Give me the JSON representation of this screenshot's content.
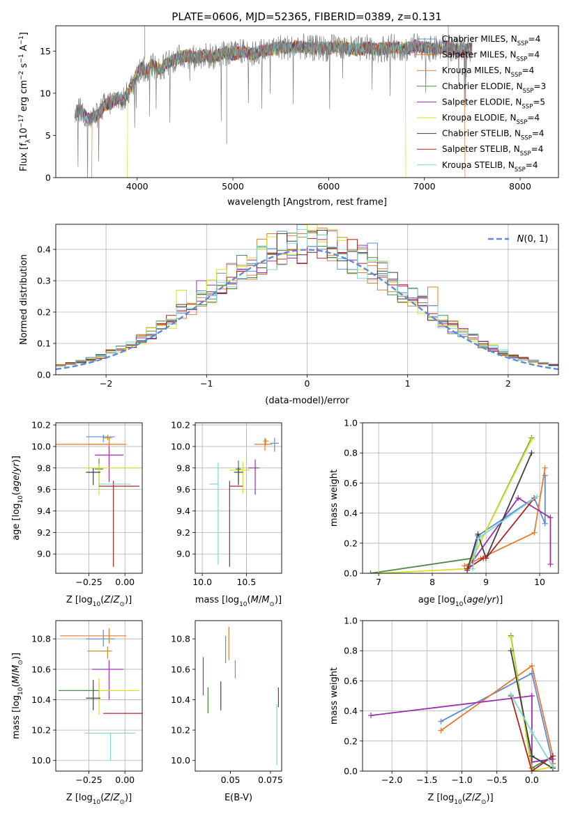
{
  "figure_title": "PLATE=0606, MJD=52365, FIBERID=0389, z=0.131",
  "colors": {
    "Chabrier MILES": "#5b8bd6",
    "Salpeter MILES": "#e67a2e",
    "Kroupa MILES": "#c98a2e",
    "Chabrier ELODIE": "#4c8a4c",
    "Salpeter ELODIE": "#9b2fae",
    "Kroupa ELODIE": "#d9e021",
    "Chabrier STELIB": "#3f3f3f",
    "Salpeter STELIB": "#b22222",
    "Kroupa STELIB": "#7fd6d6",
    "gauss": "#5b8bd6"
  },
  "chart_data": [
    {
      "id": "spectrum",
      "type": "line",
      "title": "PLATE=0606, MJD=52365, FIBERID=0389, z=0.131",
      "xlabel": "wavelength [Angstrom, rest frame]",
      "ylabel": "Flux [f_λ 10^-17 erg cm^-2 s^-1 A^-1]",
      "xlim": [
        3150,
        8400
      ],
      "ylim": [
        0,
        18
      ],
      "xticks": [
        4000,
        5000,
        6000,
        7000,
        8000
      ],
      "yticks": [
        0,
        5,
        10,
        15
      ],
      "grid": false,
      "legend": "top-right",
      "data_curve": {
        "x": [
          3350,
          3400,
          3450,
          3500,
          3550,
          3600,
          3650,
          3700,
          3750,
          3800,
          3850,
          3900,
          3950,
          4000,
          4050,
          4100,
          4150,
          4200,
          4250,
          4300,
          4350,
          4400,
          4450,
          4500,
          4600,
          4700,
          4800,
          4900,
          5000,
          5100,
          5200,
          5300,
          5400,
          5500,
          5600,
          5700,
          5800,
          5900,
          6000,
          6100,
          6200,
          6300,
          6400,
          6500,
          6600,
          6700,
          6800,
          6900,
          7000,
          7100,
          7200,
          7300,
          7400,
          7500
        ],
        "y": [
          7.8,
          8.0,
          7.5,
          6.8,
          7.2,
          7.5,
          8.5,
          8.8,
          9.0,
          9.5,
          9.0,
          10.0,
          11.0,
          12.5,
          13.0,
          12.5,
          13.5,
          13.0,
          12.8,
          13.5,
          13.8,
          14.0,
          14.3,
          14.5,
          14.2,
          14.5,
          14.3,
          14.8,
          14.6,
          15.0,
          14.6,
          15.0,
          15.2,
          15.5,
          15.4,
          15.6,
          15.3,
          15.4,
          15.3,
          15.6,
          15.3,
          15.2,
          15.4,
          15.2,
          15.3,
          15.5,
          15.2,
          15.6,
          15.4,
          15.2,
          15.5,
          15.2,
          15.0,
          15.3
        ]
      },
      "model_dropouts": [
        {
          "series": "Salpeter MILES",
          "x_start": 3530
        },
        {
          "series": "Kroupa ELODIE",
          "x_start": 3900
        },
        {
          "series": "Kroupa ELODIE",
          "x_end": 6800
        },
        {
          "series": "Salpeter MILES",
          "x_end": 7420
        }
      ],
      "series_labels": [
        "Chabrier MILES, N_SSP=4",
        "Salpeter MILES, N_SSP=4",
        "Kroupa MILES, N_SSP=4",
        "Chabrier ELODIE, N_SSP=3",
        "Salpeter ELODIE, N_SSP=5",
        "Kroupa ELODIE, N_SSP=4",
        "Chabrier STELIB, N_SSP=4",
        "Salpeter STELIB, N_SSP=4",
        "Kroupa STELIB, N_SSP=4"
      ],
      "series_keys": [
        "Chabrier MILES",
        "Salpeter MILES",
        "Kroupa MILES",
        "Chabrier ELODIE",
        "Salpeter ELODIE",
        "Kroupa ELODIE",
        "Chabrier STELIB",
        "Salpeter STELIB",
        "Kroupa STELIB"
      ]
    },
    {
      "id": "residuals",
      "type": "histogram",
      "xlabel": "(data-model)/error",
      "ylabel": "Normed distribution",
      "xlim": [
        -2.5,
        2.5
      ],
      "ylim": [
        0,
        0.48
      ],
      "xticks": [
        -2,
        -1,
        0,
        1,
        2
      ],
      "yticks": [
        0.0,
        0.1,
        0.2,
        0.3,
        0.4
      ],
      "grid": true,
      "legend": "top-right",
      "legend_label": "N(0,1)",
      "bin_width": 0.1,
      "bin_start": -2.5,
      "base_curve": "gaussian",
      "spikes": [
        {
          "x": -1.25,
          "value": 0.27,
          "series": "Kroupa ELODIE"
        },
        {
          "x": -1.0,
          "value": 0.3,
          "series": "Salpeter ELODIE"
        },
        {
          "x": -0.35,
          "value": 0.44,
          "series": "Kroupa ELODIE"
        },
        {
          "x": 0.0,
          "value": 0.45,
          "series": "Salpeter MILES"
        },
        {
          "x": 0.65,
          "value": 0.42,
          "series": "Chabrier MILES"
        },
        {
          "x": 1.25,
          "value": 0.28,
          "series": "Salpeter MILES"
        }
      ]
    },
    {
      "id": "age_vs_Z",
      "type": "scatter",
      "xlabel": "Z [log10(Z/Z⊙)]",
      "ylabel": "age [log10(age/yr)]",
      "xlim": [
        -0.48,
        0.12
      ],
      "ylim": [
        8.82,
        10.22
      ],
      "xticks": [
        -0.25,
        0.0
      ],
      "yticks": [
        9.0,
        9.2,
        9.4,
        9.6,
        9.8,
        10.0,
        10.2
      ],
      "grid": true,
      "points": [
        {
          "series": "Chabrier MILES",
          "x": -0.15,
          "y": 10.09,
          "xerr": [
            0.12,
            0.08
          ],
          "yerr": [
            0.05,
            0.02
          ]
        },
        {
          "series": "Salpeter MILES",
          "x": -0.11,
          "y": 10.02,
          "xerr": [
            0.15,
            0.12
          ],
          "yerr": [
            0.03,
            0.06
          ]
        },
        {
          "series": "Kroupa MILES",
          "x": -0.12,
          "y": 10.08,
          "xerr": [
            0.03,
            0.03
          ],
          "yerr": [
            0.02,
            0.03
          ]
        },
        {
          "series": "Chabrier ELODIE",
          "x": -0.18,
          "y": 9.79,
          "xerr": [
            0.03,
            0.03
          ],
          "yerr": [
            0.15,
            0.1
          ]
        },
        {
          "series": "Salpeter ELODIE",
          "x": -0.11,
          "y": 9.92,
          "xerr": [
            0.1,
            0.1
          ],
          "yerr": [
            0.25,
            0.08
          ]
        },
        {
          "series": "Kroupa ELODIE",
          "x": -0.18,
          "y": 9.8,
          "xerr": [
            0.1,
            0.28
          ],
          "yerr": [
            0.25,
            0.04
          ]
        },
        {
          "series": "Chabrier STELIB",
          "x": -0.22,
          "y": 9.76,
          "xerr": [
            0.05,
            0.05
          ],
          "yerr": [
            0.12,
            0.04
          ]
        },
        {
          "series": "Salpeter STELIB",
          "x": -0.08,
          "y": 9.63,
          "xerr": [
            0.1,
            0.18
          ],
          "yerr": [
            0.75,
            0.05
          ]
        },
        {
          "series": "Kroupa STELIB",
          "x": -0.08,
          "y": 9.65,
          "xerr": [
            0.1,
            0.12
          ],
          "yerr": [
            0.0,
            0.0
          ]
        },
        {
          "series": "Salpeter MILES",
          "x": -0.38,
          "y": 10.02,
          "xerr": [
            0.1,
            0.28
          ],
          "yerr": [
            0.0,
            0.0
          ]
        }
      ]
    },
    {
      "id": "age_vs_mass",
      "type": "scatter",
      "xlabel": "mass [log10(M/M⊙)]",
      "ylabel": "",
      "xlim": [
        9.92,
        10.9
      ],
      "ylim": [
        8.82,
        10.22
      ],
      "xticks": [
        10.0,
        10.5
      ],
      "yticks": [
        9.0,
        9.2,
        9.4,
        9.6,
        9.8,
        10.0,
        10.2
      ],
      "grid": true,
      "points": [
        {
          "series": "Chabrier MILES",
          "x": 10.82,
          "y": 10.03,
          "xerr": [
            0.05,
            0.05
          ],
          "yerr": [
            0.08,
            0.05
          ]
        },
        {
          "series": "Salpeter MILES",
          "x": 10.71,
          "y": 10.02,
          "xerr": [
            0.12,
            0.08
          ],
          "yerr": [
            0.06,
            0.06
          ]
        },
        {
          "series": "Kroupa MILES",
          "x": 10.72,
          "y": 10.05,
          "xerr": [
            0.03,
            0.03
          ],
          "yerr": [
            0.04,
            0.02
          ]
        },
        {
          "series": "Chabrier ELODIE",
          "x": 10.41,
          "y": 9.79,
          "xerr": [
            0.03,
            0.03
          ],
          "yerr": [
            0.12,
            0.08
          ]
        },
        {
          "series": "Salpeter ELODIE",
          "x": 10.6,
          "y": 9.8,
          "xerr": [
            0.08,
            0.05
          ],
          "yerr": [
            0.25,
            0.08
          ]
        },
        {
          "series": "Kroupa ELODIE",
          "x": 10.46,
          "y": 9.78,
          "xerr": [
            0.15,
            0.08
          ],
          "yerr": [
            0.22,
            0.08
          ]
        },
        {
          "series": "Chabrier STELIB",
          "x": 10.41,
          "y": 9.76,
          "xerr": [
            0.05,
            0.05
          ],
          "yerr": [
            0.12,
            0.05
          ]
        },
        {
          "series": "Salpeter STELIB",
          "x": 10.31,
          "y": 9.63,
          "xerr": [
            0.0,
            0.15
          ],
          "yerr": [
            0.75,
            0.05
          ]
        },
        {
          "series": "Kroupa STELIB",
          "x": 10.18,
          "y": 9.65,
          "xerr": [
            0.1,
            0.0
          ],
          "yerr": [
            0.75,
            0.2
          ]
        }
      ]
    },
    {
      "id": "weight_vs_age",
      "type": "line",
      "xlabel": "age [log10(age/yr)]",
      "ylabel": "mass weight",
      "xlim": [
        6.7,
        10.35
      ],
      "ylim": [
        0,
        1.0
      ],
      "xticks": [
        7,
        8,
        9,
        10
      ],
      "yticks": [
        0.0,
        0.2,
        0.4,
        0.6,
        0.8,
        1.0
      ],
      "grid": true,
      "series": [
        {
          "key": "Chabrier MILES",
          "x": [
            8.7,
            8.85,
            9.9,
            10.1,
            10.1
          ],
          "y": [
            0.05,
            0.25,
            0.5,
            0.33,
            0.65
          ]
        },
        {
          "key": "Salpeter MILES",
          "x": [
            8.6,
            8.9,
            9.9,
            10.1
          ],
          "y": [
            0.05,
            0.1,
            0.27,
            0.7
          ]
        },
        {
          "key": "Chabrier ELODIE",
          "x": [
            6.85,
            8.75,
            9.85
          ],
          "y": [
            0.0,
            0.1,
            0.9
          ]
        },
        {
          "key": "Salpeter ELODIE",
          "x": [
            8.75,
            9.6,
            10.2,
            10.2
          ],
          "y": [
            0.08,
            0.5,
            0.37,
            0.06
          ]
        },
        {
          "key": "Kroupa ELODIE",
          "x": [
            7.0,
            8.65,
            9.85
          ],
          "y": [
            0.0,
            0.03,
            0.89
          ]
        },
        {
          "key": "Chabrier STELIB",
          "x": [
            8.65,
            8.85,
            9.0,
            9.85
          ],
          "y": [
            0.02,
            0.26,
            0.1,
            0.8
          ]
        },
        {
          "key": "Salpeter STELIB",
          "x": [
            8.65,
            8.95,
            9.0,
            9.9
          ],
          "y": [
            0.03,
            0.1,
            0.1,
            0.5
          ]
        },
        {
          "key": "Kroupa STELIB",
          "x": [
            8.75,
            8.85,
            9.95
          ],
          "y": [
            0.03,
            0.23,
            0.51
          ]
        }
      ]
    },
    {
      "id": "mass_vs_Z",
      "type": "scatter",
      "xlabel": "Z [log10(Z/Z⊙)]",
      "ylabel": "mass [log10(M/M⊙)]",
      "xlim": [
        -0.48,
        0.12
      ],
      "ylim": [
        9.93,
        10.92
      ],
      "xticks": [
        -0.25,
        0.0
      ],
      "yticks": [
        10.0,
        10.2,
        10.4,
        10.6,
        10.8
      ],
      "grid": true,
      "points": [
        {
          "series": "Chabrier MILES",
          "x": -0.15,
          "y": 10.8,
          "xerr": [
            0.12,
            0.08
          ],
          "yerr": [
            0.05,
            0.06
          ]
        },
        {
          "series": "Salpeter MILES",
          "x": -0.11,
          "y": 10.82,
          "xerr": [
            0.34,
            0.12
          ],
          "yerr": [
            0.05,
            0.05
          ]
        },
        {
          "series": "Kroupa MILES",
          "x": -0.12,
          "y": 10.72,
          "xerr": [
            0.14,
            0.03
          ],
          "yerr": [
            0.05,
            0.03
          ]
        },
        {
          "series": "Chabrier ELODIE",
          "x": -0.18,
          "y": 10.46,
          "xerr": [
            0.28,
            0.0
          ],
          "yerr": [
            0.05,
            0.05
          ]
        },
        {
          "series": "Salpeter ELODIE",
          "x": -0.11,
          "y": 10.6,
          "xerr": [
            0.12,
            0.1
          ],
          "yerr": [
            0.2,
            0.06
          ]
        },
        {
          "series": "Kroupa ELODIE",
          "x": -0.18,
          "y": 10.46,
          "xerr": [
            0.0,
            0.28
          ],
          "yerr": [
            0.16,
            0.08
          ]
        },
        {
          "series": "Chabrier STELIB",
          "x": -0.22,
          "y": 10.41,
          "xerr": [
            0.05,
            0.05
          ],
          "yerr": [
            0.08,
            0.12
          ]
        },
        {
          "series": "Salpeter STELIB",
          "x": -0.15,
          "y": 10.31,
          "xerr": [
            0.0,
            0.27
          ],
          "yerr": [
            0.0,
            0.0
          ]
        },
        {
          "series": "Kroupa STELIB",
          "x": -0.1,
          "y": 10.18,
          "xerr": [
            0.18,
            0.17
          ],
          "yerr": [
            0.18,
            0.0
          ]
        }
      ]
    },
    {
      "id": "mass_vs_ebv",
      "type": "scatter",
      "xlabel": "E(B-V)",
      "ylabel": "",
      "xlim": [
        0.028,
        0.082
      ],
      "ylim": [
        9.93,
        10.92
      ],
      "xticks": [
        0.05,
        0.075
      ],
      "yticks": [
        10.0,
        10.2,
        10.4,
        10.6,
        10.8
      ],
      "grid": false,
      "points": [
        {
          "series": "Chabrier MILES",
          "x": 0.047,
          "y": 10.73,
          "yerr": [
            0.09,
            0.09
          ]
        },
        {
          "series": "Salpeter MILES",
          "x": 0.049,
          "y": 10.78,
          "yerr": [
            0.12,
            0.1
          ]
        },
        {
          "series": "Kroupa MILES",
          "x": 0.053,
          "y": 10.6,
          "yerr": [
            0.06,
            0.06
          ]
        },
        {
          "series": "Salpeter ELODIE",
          "x": 0.033,
          "y": 10.56,
          "yerr": [
            0.13,
            0.12
          ]
        },
        {
          "series": "Kroupa ELODIE",
          "x": 0.036,
          "y": 10.43,
          "yerr": [
            0.12,
            0.05
          ]
        },
        {
          "series": "Chabrier ELODIE",
          "x": 0.036,
          "y": 10.43,
          "yerr": [
            0.12,
            0.05
          ]
        },
        {
          "series": "Chabrier STELIB",
          "x": 0.044,
          "y": 10.43,
          "yerr": [
            0.1,
            0.09
          ]
        },
        {
          "series": "Salpeter STELIB",
          "x": 0.08,
          "y": 10.35,
          "yerr": [
            0.0,
            0.13
          ]
        },
        {
          "series": "Kroupa STELIB",
          "x": 0.079,
          "y": 10.17,
          "yerr": [
            0.2,
            0.2
          ]
        }
      ]
    },
    {
      "id": "weight_vs_Z",
      "type": "line",
      "xlabel": "Z [log10(Z/Z⊙)]",
      "ylabel": "mass weight",
      "xlim": [
        -2.42,
        0.38
      ],
      "ylim": [
        0,
        1.0
      ],
      "xticks": [
        -2.0,
        -1.5,
        -1.0,
        -0.5,
        0.0
      ],
      "yticks": [
        0.0,
        0.2,
        0.4,
        0.6,
        0.8,
        1.0
      ],
      "grid": true,
      "series": [
        {
          "key": "Chabrier MILES",
          "x": [
            -1.3,
            0.0,
            0.3,
            0.3
          ],
          "y": [
            0.33,
            0.65,
            0.05,
            0.02
          ]
        },
        {
          "key": "Salpeter MILES",
          "x": [
            -1.3,
            0.0,
            0.3,
            0.3
          ],
          "y": [
            0.27,
            0.7,
            0.1,
            0.05
          ]
        },
        {
          "key": "Chabrier ELODIE",
          "x": [
            -0.3,
            0.0,
            0.3
          ],
          "y": [
            0.9,
            0.02,
            0.1
          ]
        },
        {
          "key": "Salpeter ELODIE",
          "x": [
            -2.3,
            0.0,
            0.0,
            0.0,
            0.3
          ],
          "y": [
            0.37,
            0.5,
            0.5,
            0.06,
            0.08
          ]
        },
        {
          "key": "Kroupa ELODIE",
          "x": [
            -0.3,
            0.0,
            0.3
          ],
          "y": [
            0.89,
            0.0,
            0.03
          ]
        },
        {
          "key": "Chabrier STELIB",
          "x": [
            -0.3,
            0.0,
            0.3
          ],
          "y": [
            0.8,
            0.1,
            0.02
          ]
        },
        {
          "key": "Salpeter STELIB",
          "x": [
            -0.3,
            0.0,
            0.3
          ],
          "y": [
            0.5,
            0.0,
            0.1
          ]
        },
        {
          "key": "Kroupa STELIB",
          "x": [
            -0.3,
            0.0,
            0.3
          ],
          "y": [
            0.51,
            0.26,
            0.03
          ]
        }
      ]
    }
  ]
}
